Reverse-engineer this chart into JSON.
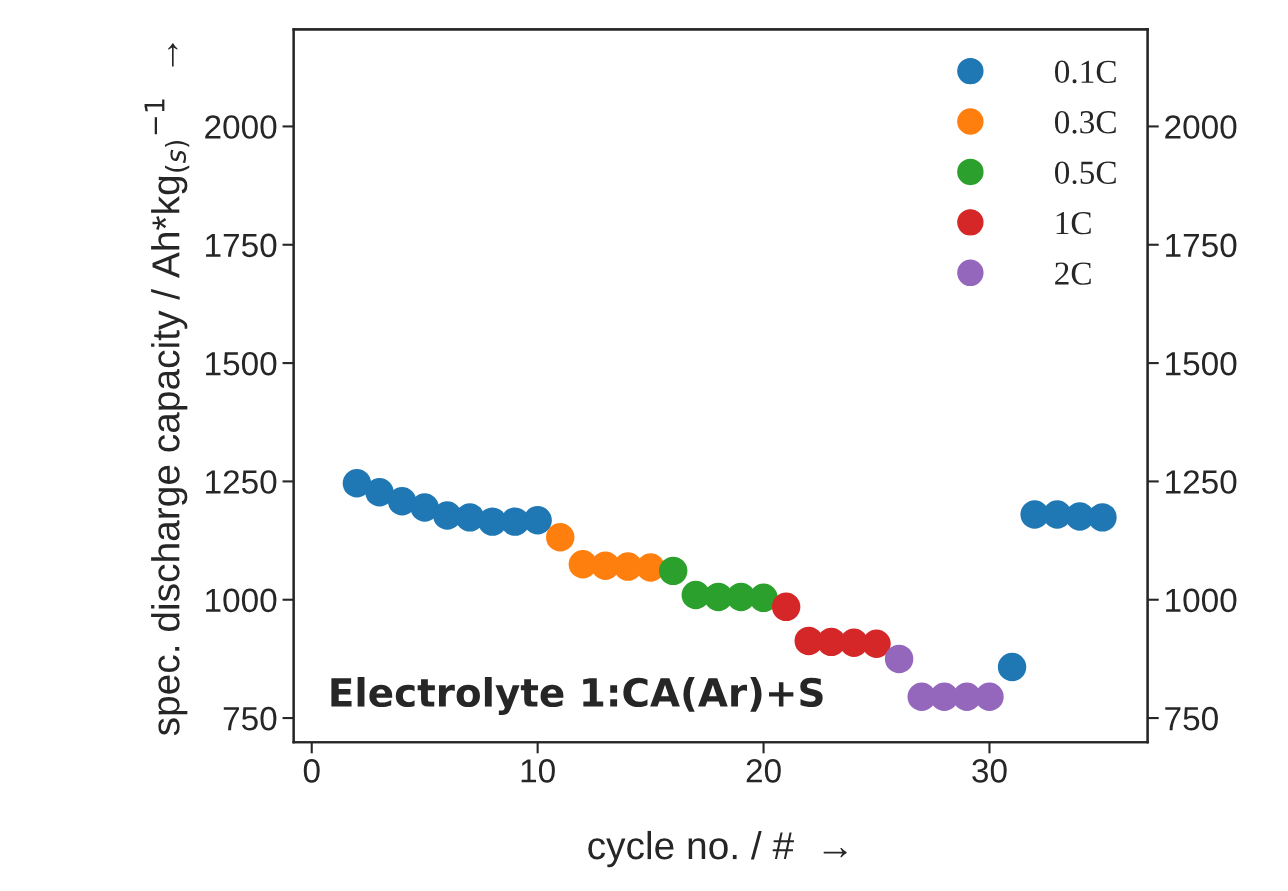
{
  "chart_data": {
    "type": "scatter",
    "xlabel": "cycle no. / #  →",
    "ylabel": "spec. discharge capacity / Ah*kg$_{(s)}$$^{−1}$  →",
    "annotations": [
      "Electrolyte 1:CA(Ar)+S"
    ],
    "xlim": [
      -0.8,
      37
    ],
    "xticks": [
      0,
      10,
      20,
      30
    ],
    "ylim": [
      699,
      2205
    ],
    "yticks": [
      750,
      1000,
      1250,
      1500,
      1750,
      2000
    ],
    "y2lim": [
      699,
      2205
    ],
    "y2ticks": [
      750,
      1000,
      1250,
      1500,
      1750,
      2000
    ],
    "marker": "circle",
    "legend": "top right",
    "grid": false,
    "series": [
      {
        "name": "0.1C",
        "color": "#1f77b4",
        "x": [
          2,
          3,
          4,
          5,
          6,
          7,
          8,
          9,
          10,
          31,
          32,
          33,
          34,
          35
        ],
        "values": [
          1246,
          1227,
          1208,
          1195,
          1178,
          1174,
          1165,
          1165,
          1168,
          858,
          1180,
          1180,
          1176,
          1174
        ]
      },
      {
        "name": "0.3C",
        "color": "#ff7f0e",
        "x": [
          11,
          12,
          13,
          14,
          15
        ],
        "values": [
          1132,
          1075,
          1072,
          1070,
          1068
        ]
      },
      {
        "name": "0.5C",
        "color": "#2ca02c",
        "x": [
          16,
          17,
          18,
          19,
          20
        ],
        "values": [
          1061,
          1010,
          1006,
          1006,
          1004
        ]
      },
      {
        "name": "1C",
        "color": "#d62728",
        "x": [
          21,
          22,
          23,
          24,
          25
        ],
        "values": [
          985,
          913,
          911,
          909,
          907
        ]
      },
      {
        "name": "2C",
        "color": "#9467bd",
        "x": [
          26,
          27,
          28,
          29,
          30
        ],
        "values": [
          875,
          795,
          795,
          795,
          795
        ]
      }
    ]
  }
}
